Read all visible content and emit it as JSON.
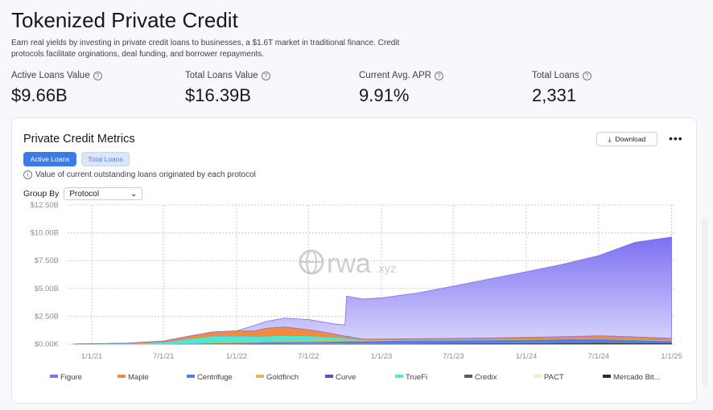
{
  "header": {
    "title": "Tokenized Private Credit",
    "description": "Earn real yields by investing in private credit loans to businesses, a $1.6T market in traditional finance. Credit protocols facilitate orginations, deal funding, and borrower repayments."
  },
  "stats": [
    {
      "label": "Active Loans Value",
      "value": "$9.66B"
    },
    {
      "label": "Total Loans Value",
      "value": "$16.39B"
    },
    {
      "label": "Current Avg. APR",
      "value": "9.91%"
    },
    {
      "label": "Total Loans",
      "value": "2,331"
    }
  ],
  "card": {
    "title": "Private Credit Metrics",
    "tabs": [
      "Active Loans",
      "Total Loans"
    ],
    "info": "Value of current outstanding loans originated by each protocol",
    "group_by_label": "Group By",
    "group_by_value": "Protocol",
    "download": "Download",
    "watermark": "rwa.xyz"
  },
  "chart_data": {
    "type": "area",
    "stacked": true,
    "grid": true,
    "legend": "bottom",
    "y_ticks": [
      "$0.00K",
      "$2.50B",
      "$5.00B",
      "$7.50B",
      "$10.00B",
      "$12.50B"
    ],
    "ylim": [
      0,
      12.5
    ],
    "y_unit": "$B",
    "x_ticks": [
      "1/1/21",
      "7/1/21",
      "1/1/22",
      "7/1/22",
      "1/1/23",
      "7/1/23",
      "1/1/24",
      "7/1/24",
      "1/1/25"
    ],
    "xlim": [
      "2020-11-01",
      "2025-01-08"
    ],
    "dates": [
      "2020-11-15",
      "2021-01-01",
      "2021-04-01",
      "2021-07-01",
      "2021-09-01",
      "2021-11-01",
      "2022-01-01",
      "2022-02-15",
      "2022-03-15",
      "2022-05-01",
      "2022-07-01",
      "2022-09-01",
      "2022-10-01",
      "2022-10-05",
      "2022-11-15",
      "2023-01-01",
      "2023-04-01",
      "2023-07-01",
      "2023-10-01",
      "2024-01-01",
      "2024-04-01",
      "2024-07-01",
      "2024-10-01",
      "2025-01-01"
    ],
    "series": [
      {
        "name": "Mercado Bit...",
        "color": "#2e3036",
        "values": [
          0,
          0,
          0,
          0,
          0,
          0,
          0,
          0,
          0,
          0,
          0,
          0,
          0.01,
          0.01,
          0.02,
          0.03,
          0.04,
          0.05,
          0.05,
          0.06,
          0.07,
          0.08,
          0.08,
          0.08
        ]
      },
      {
        "name": "Credix",
        "color": "#5a5c63",
        "values": [
          0,
          0,
          0,
          0,
          0,
          0.01,
          0.02,
          0.03,
          0.03,
          0.04,
          0.04,
          0.04,
          0.04,
          0.04,
          0.04,
          0.04,
          0.04,
          0.04,
          0.05,
          0.05,
          0.06,
          0.08,
          0.06,
          0.05
        ]
      },
      {
        "name": "PACT",
        "color": "#f4efbf",
        "values": [
          0,
          0,
          0,
          0,
          0,
          0,
          0,
          0,
          0,
          0,
          0.01,
          0.01,
          0.01,
          0.01,
          0.01,
          0.01,
          0.01,
          0.01,
          0.01,
          0.01,
          0.01,
          0.01,
          0.01,
          0.01
        ]
      },
      {
        "name": "Centrifuge",
        "color": "#4f7df0",
        "values": [
          0,
          0,
          0.01,
          0.02,
          0.05,
          0.08,
          0.1,
          0.12,
          0.15,
          0.15,
          0.15,
          0.18,
          0.2,
          0.2,
          0.2,
          0.22,
          0.25,
          0.25,
          0.26,
          0.28,
          0.3,
          0.3,
          0.22,
          0.15
        ]
      },
      {
        "name": "Goldfinch",
        "color": "#e8b44e",
        "values": [
          0,
          0,
          0,
          0.01,
          0.03,
          0.05,
          0.07,
          0.08,
          0.09,
          0.1,
          0.1,
          0.1,
          0.1,
          0.1,
          0.08,
          0.07,
          0.06,
          0.06,
          0.06,
          0.05,
          0.05,
          0.05,
          0.05,
          0.05
        ]
      },
      {
        "name": "TrueFi",
        "color": "#4fe6d2",
        "values": [
          0.01,
          0.02,
          0.05,
          0.15,
          0.4,
          0.6,
          0.55,
          0.5,
          0.45,
          0.5,
          0.45,
          0.3,
          0.2,
          0.2,
          0.05,
          0.03,
          0.02,
          0.02,
          0.02,
          0.02,
          0.02,
          0.02,
          0.02,
          0.02
        ]
      },
      {
        "name": "Curve",
        "color": "#5a4fc6",
        "values": [
          0,
          0,
          0,
          0,
          0,
          0,
          0,
          0,
          0,
          0,
          0,
          0,
          0,
          0,
          0,
          0,
          0,
          0,
          0.01,
          0.01,
          0.01,
          0.01,
          0.01,
          0.01
        ]
      },
      {
        "name": "Maple",
        "color": "#f58a3c",
        "values": [
          0,
          0.01,
          0.03,
          0.1,
          0.22,
          0.35,
          0.45,
          0.45,
          0.7,
          0.75,
          0.55,
          0.3,
          0.15,
          0.15,
          0.05,
          0.05,
          0.07,
          0.08,
          0.1,
          0.12,
          0.15,
          0.2,
          0.2,
          0.15
        ]
      },
      {
        "name": "Figure",
        "color": "#7c70f2",
        "values": [
          0,
          0,
          0,
          0,
          0,
          0,
          0,
          0.5,
          0.6,
          0.8,
          0.9,
          0.9,
          1.0,
          3.6,
          3.6,
          3.7,
          4.1,
          4.7,
          5.3,
          5.9,
          6.5,
          7.2,
          8.5,
          9.1
        ]
      }
    ],
    "legend_order": [
      "Figure",
      "Maple",
      "Centrifuge",
      "Goldfinch",
      "Curve",
      "TrueFi",
      "Credix",
      "PACT",
      "Mercado Bit..."
    ]
  }
}
